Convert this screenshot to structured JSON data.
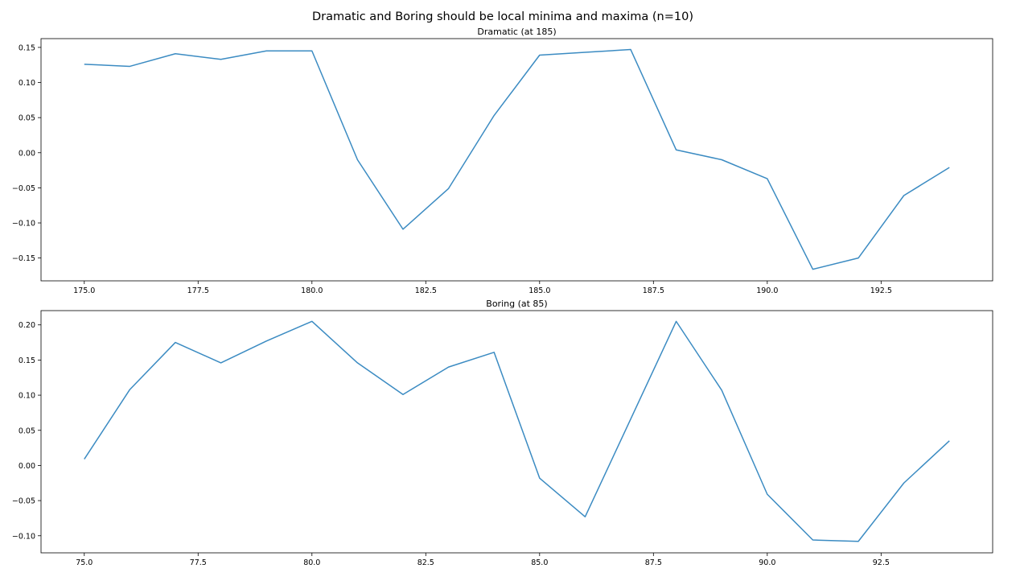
{
  "suptitle": "Dramatic and Boring should be local minima and maxima (n=10)",
  "colors": {
    "line": "#3b8bc2"
  },
  "chart_data": [
    {
      "type": "line",
      "title": "Dramatic (at 185)",
      "xlabel": "",
      "ylabel": "",
      "xlim": [
        174.05,
        194.95
      ],
      "ylim": [
        -0.1825,
        0.1625
      ],
      "grid": false,
      "xticks": [
        175.0,
        177.5,
        180.0,
        182.5,
        185.0,
        187.5,
        190.0,
        192.5
      ],
      "xtick_labels": [
        "175.0",
        "177.5",
        "180.0",
        "182.5",
        "185.0",
        "187.5",
        "190.0",
        "192.5"
      ],
      "yticks": [
        0.15,
        0.1,
        0.05,
        0.0,
        -0.05,
        -0.1,
        -0.15
      ],
      "ytick_labels": [
        "0.15",
        "0.10",
        "0.05",
        "0.00",
        "−0.05",
        "−0.10",
        "−0.15"
      ],
      "x": [
        175,
        176,
        177,
        178,
        179,
        180,
        181,
        182,
        183,
        184,
        185,
        186,
        187,
        188,
        189,
        190,
        191,
        192,
        193,
        194
      ],
      "y": [
        0.126,
        0.123,
        0.141,
        0.133,
        0.145,
        0.145,
        -0.01,
        -0.109,
        -0.051,
        0.053,
        0.139,
        0.143,
        0.147,
        0.004,
        -0.01,
        -0.037,
        -0.166,
        -0.15,
        -0.061,
        -0.021
      ]
    },
    {
      "type": "line",
      "title": "Boring (at 85)",
      "xlabel": "",
      "ylabel": "",
      "xlim": [
        74.05,
        94.95
      ],
      "ylim": [
        -0.1243,
        0.2203
      ],
      "grid": false,
      "xticks": [
        75.0,
        77.5,
        80.0,
        82.5,
        85.0,
        87.5,
        90.0,
        92.5
      ],
      "xtick_labels": [
        "75.0",
        "77.5",
        "80.0",
        "82.5",
        "85.0",
        "87.5",
        "90.0",
        "92.5"
      ],
      "yticks": [
        0.2,
        0.15,
        0.1,
        0.05,
        0.0,
        -0.05,
        -0.1
      ],
      "ytick_labels": [
        "0.20",
        "0.15",
        "0.10",
        "0.05",
        "0.00",
        "−0.05",
        "−0.10"
      ],
      "x": [
        75,
        76,
        77,
        78,
        79,
        80,
        81,
        82,
        83,
        84,
        85,
        86,
        87,
        88,
        89,
        90,
        91,
        92,
        93,
        94
      ],
      "y": [
        0.009,
        0.108,
        0.175,
        0.146,
        0.177,
        0.205,
        0.146,
        0.101,
        0.14,
        0.161,
        -0.018,
        -0.073,
        0.066,
        0.205,
        0.107,
        -0.041,
        -0.106,
        -0.108,
        -0.025,
        0.035
      ]
    }
  ]
}
